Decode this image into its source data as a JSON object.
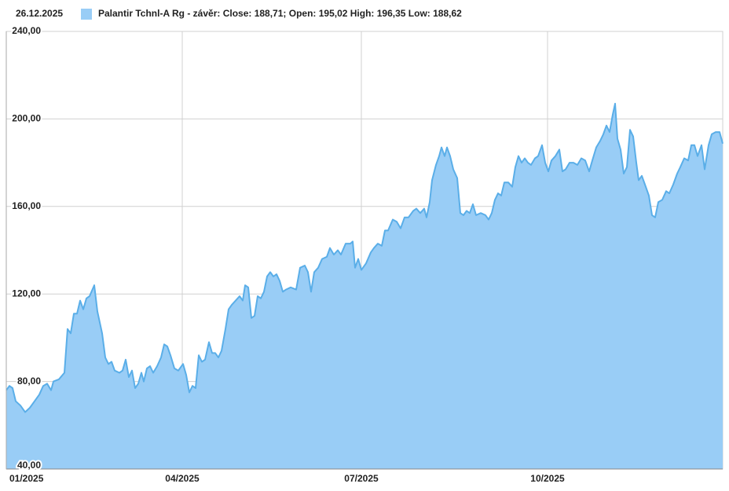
{
  "chart_data": {
    "type": "area",
    "date": "26.12.2025",
    "series": [
      {
        "name": "Palantir Tchnl-A Rg - závěr: Close: 188,71; Open: 195,02 High: 196,35 Low: 188,62",
        "color": "#99cdf6",
        "line_color": "#5aaee8",
        "values": [
          76,
          78,
          77,
          71,
          69,
          66,
          68,
          71,
          74,
          78,
          79,
          76,
          80,
          81,
          84,
          104,
          102,
          111,
          111,
          117,
          113,
          118,
          119,
          124,
          112,
          102,
          91,
          88,
          89,
          85,
          84,
          85,
          90,
          82,
          85,
          77,
          79,
          84,
          80,
          86,
          87,
          84,
          87,
          91,
          97,
          96,
          92,
          86,
          85,
          88,
          83,
          75,
          78,
          77,
          92,
          89,
          90,
          98,
          93,
          93,
          91,
          94,
          104,
          113,
          115,
          117,
          119,
          117,
          124,
          123,
          109,
          110,
          119,
          118,
          121,
          128,
          130,
          128,
          129,
          126,
          121,
          122,
          123,
          122,
          132,
          133,
          130,
          121,
          130,
          132,
          136,
          137,
          141,
          138,
          140,
          138,
          143,
          143,
          144,
          132,
          136,
          131,
          134,
          139,
          141,
          143,
          142,
          149,
          149,
          154,
          153,
          150,
          155,
          155,
          158,
          159,
          157,
          159,
          155,
          162,
          172,
          179,
          183,
          187,
          183,
          187,
          183,
          177,
          173,
          157,
          156,
          158,
          157,
          161,
          156,
          157,
          156,
          154,
          157,
          163,
          166,
          165,
          171,
          171,
          169,
          178,
          183,
          180,
          182,
          180,
          179,
          182,
          183,
          188,
          180,
          176,
          181,
          183,
          186,
          176,
          177,
          180,
          180,
          179,
          182,
          181,
          176,
          181,
          187,
          190,
          193,
          197,
          194,
          202,
          207,
          191,
          186,
          175,
          178,
          195,
          192,
          180,
          172,
          174,
          170,
          165,
          156,
          155,
          162,
          163,
          167,
          166,
          170,
          175,
          178,
          182,
          181,
          188,
          188,
          183,
          188,
          177,
          188,
          193,
          194,
          194,
          188.71
        ]
      }
    ],
    "x": [
      0,
      1.6,
      3.2,
      4.8,
      7.2,
      9.6,
      12,
      14.4,
      16.8,
      18.8,
      20.8,
      22.8,
      24,
      26.8,
      29.6,
      31.2,
      32.8,
      34.4,
      36,
      37.6,
      39.2,
      40.8,
      42.4,
      44.8,
      46.4,
      48.8,
      50.4,
      52,
      53.6,
      55.2,
      57.6,
      59.2,
      60.8,
      62.4,
      64,
      65.6,
      67.2,
      68.8,
      70,
      71.6,
      73.2,
      74.8,
      76.8,
      78.8,
      80.4,
      82,
      83.6,
      85.6,
      87.6,
      90,
      91.6,
      93.2,
      94.8,
      96.4,
      98,
      99.6,
      101.2,
      103.2,
      104.8,
      106.4,
      108,
      109.6,
      111.6,
      113.2,
      114.8,
      116.8,
      118.8,
      120.4,
      121.6,
      123.2,
      124.8,
      126.4,
      128,
      129.6,
      131.2,
      132.8,
      134.4,
      136,
      137.6,
      139.2,
      140.8,
      142.4,
      144.8,
      147.6,
      149.6,
      152,
      153.6,
      155.2,
      156.8,
      158.8,
      160.8,
      163.2,
      164.8,
      166.8,
      168.8,
      170.4,
      172.8,
      175.2,
      176.4,
      177.6,
      179.2,
      180.8,
      183.2,
      185.6,
      187.2,
      189.2,
      191.2,
      192.8,
      194.4,
      196.8,
      198.8,
      200.8,
      202.8,
      204.8,
      207.2,
      208.8,
      210.8,
      212.8,
      214,
      215.6,
      216.8,
      218.8,
      220.4,
      221.6,
      223.2,
      224.4,
      226,
      227.6,
      229.6,
      231.2,
      232.8,
      234.4,
      236,
      237.6,
      239.2,
      241.6,
      244,
      245.6,
      247.2,
      248.8,
      250.4,
      252,
      253.6,
      255.6,
      257.6,
      259.2,
      260.8,
      262.4,
      264,
      265.6,
      267.2,
      269.2,
      270.8,
      272.8,
      274.4,
      276,
      277.6,
      279.6,
      281.6,
      283.2,
      284.8,
      286.8,
      288.8,
      290.8,
      292.8,
      294.8,
      296.8,
      298.4,
      300.4,
      302.4,
      304,
      305.6,
      307.2,
      308.8,
      310,
      311.2,
      312.8,
      314.4,
      316,
      317.6,
      319.2,
      320.8,
      322,
      323.6,
      325.2,
      327.2,
      328.8,
      330.4,
      332,
      334,
      336,
      337.6,
      339.6,
      341.6,
      343.2,
      345.2,
      347.2,
      348.8,
      350.4,
      352,
      354,
      355.6,
      357.6,
      359.2,
      361.2,
      363.2,
      364.8
    ],
    "xlim": [
      0,
      364.8
    ],
    "xticks": [
      {
        "value": 0,
        "label": "01/2025"
      },
      {
        "value": 89.6,
        "label": "04/2025"
      },
      {
        "value": 180.8,
        "label": "07/2025"
      },
      {
        "value": 275.6,
        "label": "10/2025"
      }
    ],
    "ylim": [
      40,
      240
    ],
    "yticks": [
      {
        "value": 40,
        "label": "40,00"
      },
      {
        "value": 80,
        "label": "80,00"
      },
      {
        "value": 120,
        "label": "120,00"
      },
      {
        "value": 160,
        "label": "160,00"
      },
      {
        "value": 200,
        "label": "200,00"
      },
      {
        "value": 240,
        "label": "240,00"
      }
    ],
    "grid": true
  }
}
